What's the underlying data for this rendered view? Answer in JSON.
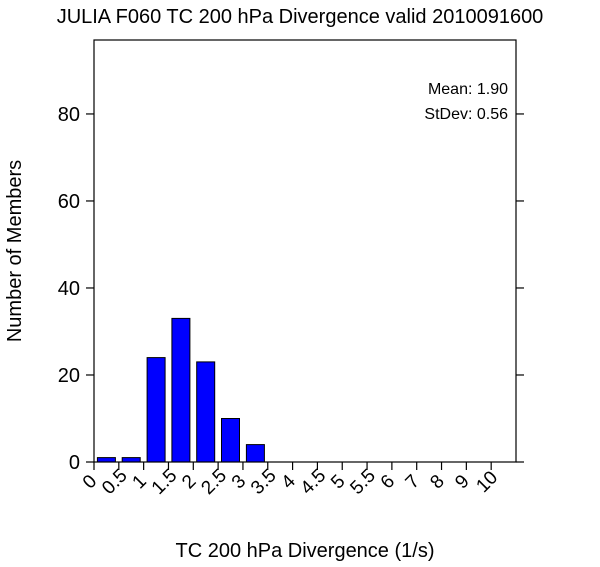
{
  "chart_data": {
    "type": "bar",
    "title": "JULIA F060 TC 200 hPa Divergence valid 2010091600",
    "xlabel": "TC 200 hPa Divergence (1/s)",
    "ylabel": "Number of Members",
    "bar_color": "#0000ff",
    "bar_edge_color": "#000000",
    "bin_edges": [
      0,
      0.5,
      1,
      1.5,
      2,
      2.5,
      3,
      3.5,
      4,
      4.5,
      5,
      5.5,
      6,
      7,
      8,
      9,
      10
    ],
    "x_tick_labels": [
      "0",
      "0.5",
      "1",
      "1.5",
      "2",
      "2.5",
      "3",
      "3.5",
      "4",
      "4.5",
      "5",
      "5.5",
      "6",
      "7",
      "8",
      "9",
      "10"
    ],
    "values": [
      1,
      1,
      24,
      33,
      23,
      10,
      4,
      0,
      0,
      0,
      0,
      0,
      0,
      0,
      0,
      0
    ],
    "y_ticks": [
      0,
      20,
      40,
      60,
      80
    ],
    "ylim": [
      0,
      97
    ],
    "annotations": [
      "Mean: 1.90",
      "StDev: 0.56"
    ],
    "legend": "none",
    "grid": false
  }
}
